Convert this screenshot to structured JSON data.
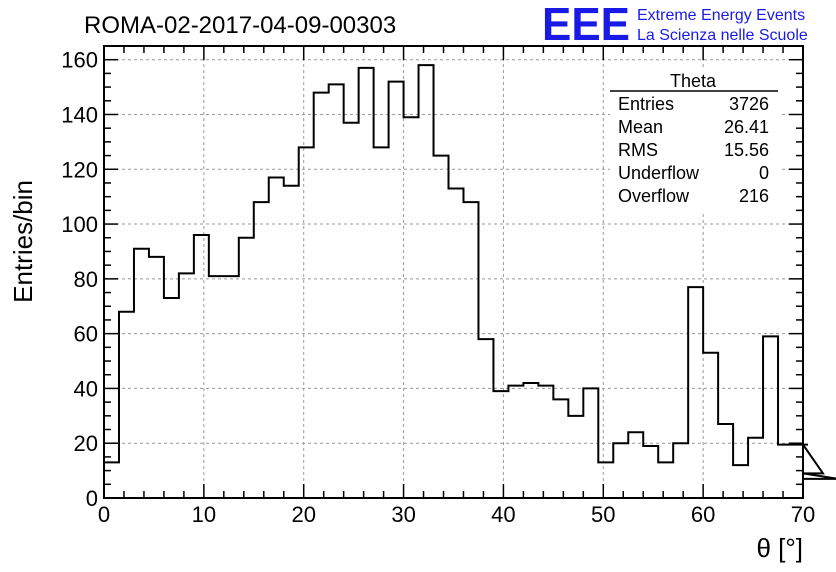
{
  "chart_data": {
    "type": "histogram",
    "title": "ROMA-02-2017-04-09-00303",
    "xlabel": "θ [°]",
    "ylabel": "Entries/bin",
    "xlim": [
      0,
      70
    ],
    "ylim": [
      0,
      165
    ],
    "x_ticks": [
      0,
      10,
      20,
      30,
      40,
      50,
      60,
      70
    ],
    "y_ticks": [
      0,
      20,
      40,
      60,
      80,
      100,
      120,
      140,
      160
    ],
    "grid": true,
    "bin_width": 1.5,
    "bin_edges_start": 0,
    "values": [
      13,
      68,
      91,
      88,
      73,
      82,
      96,
      81,
      81,
      95,
      108,
      117,
      114,
      128,
      148,
      151,
      137,
      157,
      128,
      152,
      139,
      158,
      125,
      113,
      108,
      58,
      39,
      41,
      42,
      41,
      36,
      30,
      40,
      13,
      20,
      24,
      19,
      13,
      20,
      77,
      53,
      27,
      12,
      22,
      59,
      19.5,
      19.5,
      19.5,
      9,
      7
    ],
    "stats_box": {
      "name": "Theta",
      "rows": [
        {
          "label": "Entries",
          "value": "3726"
        },
        {
          "label": "Mean",
          "value": "26.41"
        },
        {
          "label": "RMS",
          "value": "15.56"
        },
        {
          "label": "Underflow",
          "value": "0"
        },
        {
          "label": "Overflow",
          "value": "216"
        }
      ]
    }
  },
  "logo": {
    "mark": "EEE",
    "line1": "Extreme Energy Events",
    "line2": "La Scienza nelle Scuole",
    "color": "#1a1ae6"
  }
}
